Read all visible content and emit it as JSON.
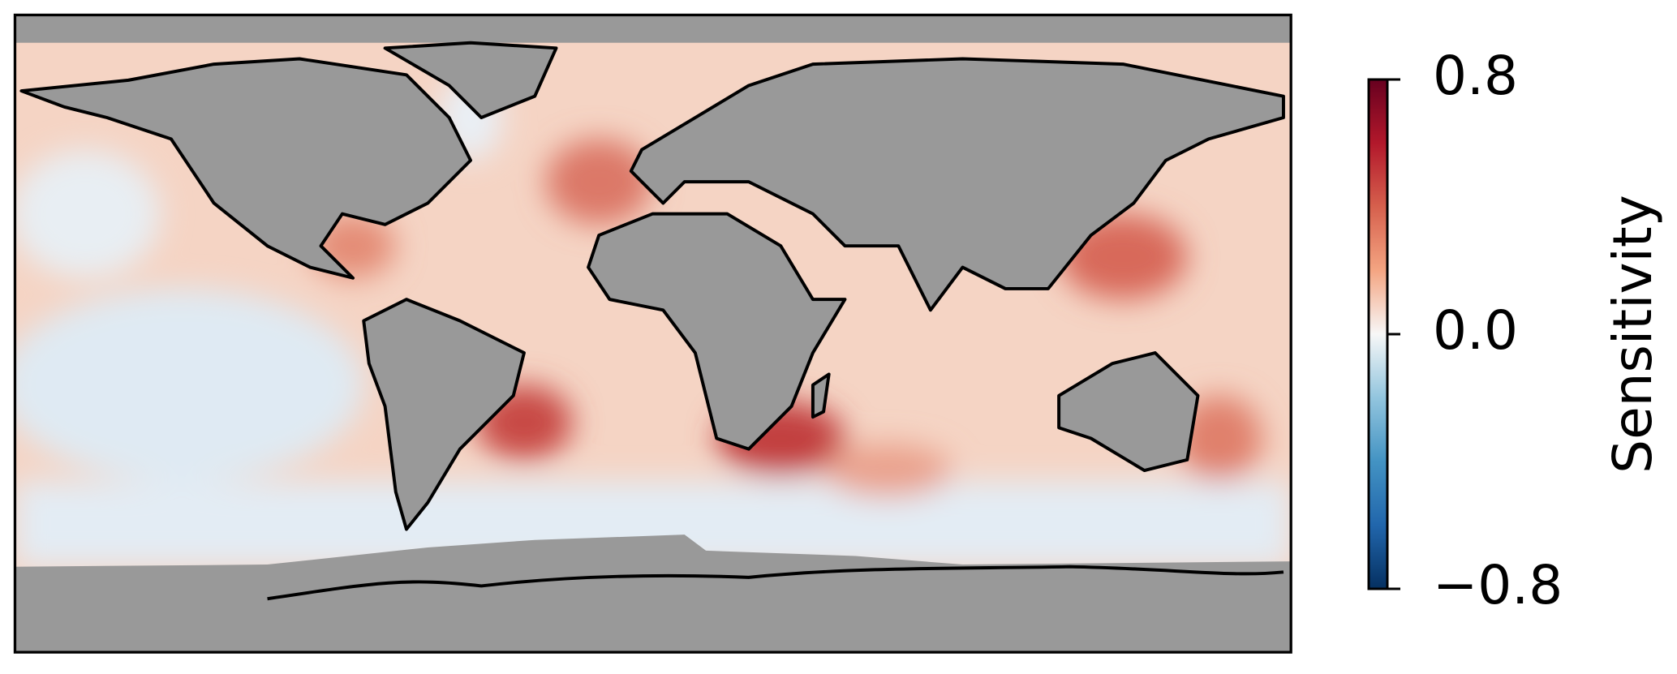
{
  "chart_data": {
    "type": "map",
    "colorbar": {
      "label": "Sensitivity",
      "clim": [
        -0.8,
        0.8
      ],
      "ticks": [
        {
          "value": -0.8,
          "label": "−0.8"
        },
        {
          "value": 0,
          "label": "0.0"
        },
        0.8
      ]
    }
  }
}
